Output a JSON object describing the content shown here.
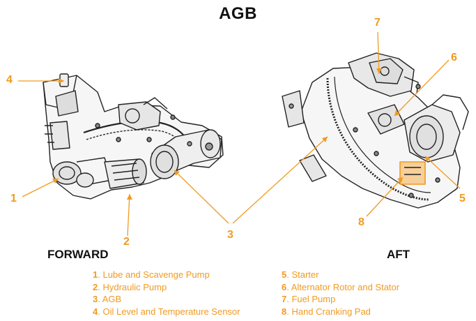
{
  "title": "AGB",
  "sections": {
    "forward": "FORWARD",
    "aft": "AFT"
  },
  "callouts": {
    "c1": "1",
    "c2": "2",
    "c3": "3",
    "c4": "4",
    "c5": "5",
    "c6": "6",
    "c7": "7",
    "c8": "8"
  },
  "legend_left": [
    {
      "num": "1",
      "label": ". Lube and Scavenge Pump"
    },
    {
      "num": "2",
      "label": ". Hydraulic Pump"
    },
    {
      "num": "3",
      "label": ". AGB"
    },
    {
      "num": "4",
      "label": ". Oil Level and Temperature Sensor"
    }
  ],
  "legend_right": [
    {
      "num": "5",
      "label": ". Starter"
    },
    {
      "num": "6",
      "label": ". Alternator Rotor and Stator"
    },
    {
      "num": "7",
      "label": ". Fuel Pump"
    },
    {
      "num": "8",
      "label": ". Hand Cranking Pad"
    }
  ],
  "colors": {
    "accent": "#f09a22",
    "line_art": "#222222",
    "highlight_fill": "#f5c27a"
  }
}
